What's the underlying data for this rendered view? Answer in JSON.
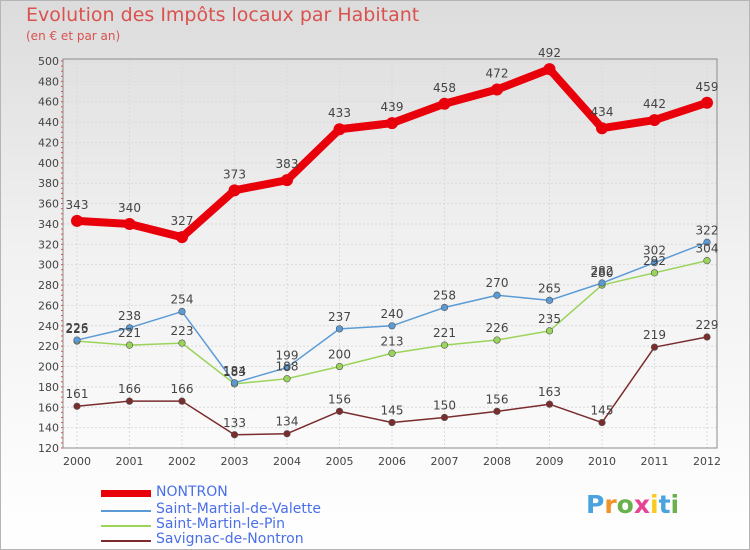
{
  "header": {
    "title": "Evolution des Impôts locaux par Habitant",
    "subtitle": "(en € et par an)"
  },
  "chart_data": {
    "type": "line",
    "x": [
      "2000",
      "2001",
      "2002",
      "2003",
      "2004",
      "2005",
      "2006",
      "2007",
      "2008",
      "2009",
      "2010",
      "2011",
      "2012"
    ],
    "ylim": [
      120,
      500
    ],
    "yticks": [
      120,
      140,
      160,
      180,
      200,
      220,
      240,
      260,
      280,
      300,
      320,
      340,
      360,
      380,
      400,
      420,
      440,
      460,
      480,
      500
    ],
    "grid": true,
    "legend_position": "bottom-left",
    "series": [
      {
        "name": "NONTRON",
        "color": "#e8000b",
        "values": [
          343,
          340,
          327,
          373,
          383,
          433,
          439,
          458,
          472,
          492,
          434,
          442,
          459
        ]
      },
      {
        "name": "Saint-Martial-de-Valette",
        "color": "#5b9bd5",
        "values": [
          226,
          238,
          254,
          184,
          199,
          237,
          240,
          258,
          270,
          265,
          282,
          302,
          322
        ]
      },
      {
        "name": "Saint-Martin-le-Pin",
        "color": "#9ad45a",
        "values": [
          225,
          221,
          223,
          183,
          188,
          200,
          213,
          221,
          226,
          235,
          280,
          292,
          304
        ]
      },
      {
        "name": "Savignac-de-Nontron",
        "color": "#7b2c2c",
        "values": [
          161,
          166,
          166,
          133,
          134,
          156,
          145,
          150,
          156,
          163,
          145,
          219,
          229
        ]
      }
    ]
  },
  "logo": {
    "letters": [
      "P",
      "r",
      "o",
      "x",
      "i",
      "t",
      "i"
    ],
    "colors": [
      "#4aa3df",
      "#f0932b",
      "#6ab04c",
      "#e84393",
      "#f9ca24",
      "#4aa3df",
      "#6ab04c"
    ]
  }
}
